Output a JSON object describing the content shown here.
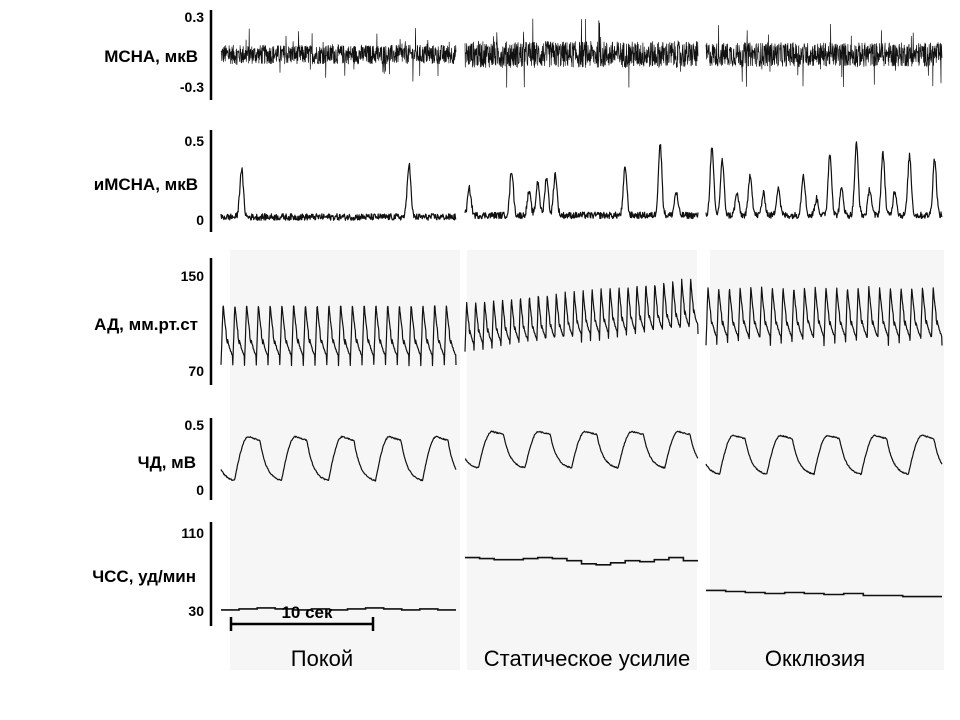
{
  "conditions": [
    "Покой",
    "Статическое усилие",
    "Окклюзия"
  ],
  "scale_bar": {
    "label": "10 сек",
    "value_s": 10
  },
  "rows": [
    {
      "label": "МСНА, мкВ",
      "ymax": "0.3",
      "ymin": "-0.3"
    },
    {
      "label": "иМСНА, мкВ",
      "ymax": "0.5",
      "ymin": "0"
    },
    {
      "label": "АД, мм.рт.ст",
      "ymax": "150",
      "ymin": "70"
    },
    {
      "label": "ЧД, мВ",
      "ymax": "0.5",
      "ymin": "0"
    },
    {
      "label": "ЧСС, уд/мин",
      "ymax": "110",
      "ymin": "30"
    }
  ],
  "chart_data": {
    "type": "line",
    "x_unit": "s",
    "segment_duration_s": 16,
    "panels": [
      {
        "name": "МСНА",
        "unit": "мкВ",
        "ylim": [
          -0.3,
          0.3
        ],
        "segments": [
          {
            "condition": "Покой",
            "amplitude": 0.08
          },
          {
            "condition": "Статическое усилие",
            "amplitude": 0.11
          },
          {
            "condition": "Окклюзия",
            "amplitude": 0.1
          }
        ]
      },
      {
        "name": "иМСНА",
        "unit": "мкВ",
        "ylim": [
          0,
          0.5
        ],
        "segments": [
          {
            "condition": "Покой",
            "baseline": 0.03,
            "bursts": [
              {
                "t": 1.4,
                "v": 0.32
              },
              {
                "t": 12.8,
                "v": 0.35
              }
            ]
          },
          {
            "condition": "Статическое усилие",
            "baseline": 0.04,
            "bursts": [
              {
                "t": 0.3,
                "v": 0.2
              },
              {
                "t": 3.2,
                "v": 0.31
              },
              {
                "t": 4.4,
                "v": 0.18
              },
              {
                "t": 5.0,
                "v": 0.24
              },
              {
                "t": 5.6,
                "v": 0.27
              },
              {
                "t": 6.2,
                "v": 0.29
              },
              {
                "t": 11.0,
                "v": 0.33
              },
              {
                "t": 13.4,
                "v": 0.47
              },
              {
                "t": 14.5,
                "v": 0.18
              }
            ]
          },
          {
            "condition": "Окклюзия",
            "baseline": 0.04,
            "bursts": [
              {
                "t": 0.4,
                "v": 0.44
              },
              {
                "t": 1.1,
                "v": 0.37
              },
              {
                "t": 2.1,
                "v": 0.17
              },
              {
                "t": 3.0,
                "v": 0.29
              },
              {
                "t": 3.9,
                "v": 0.17
              },
              {
                "t": 4.9,
                "v": 0.21
              },
              {
                "t": 6.6,
                "v": 0.29
              },
              {
                "t": 7.5,
                "v": 0.14
              },
              {
                "t": 8.4,
                "v": 0.41
              },
              {
                "t": 9.2,
                "v": 0.2
              },
              {
                "t": 10.2,
                "v": 0.47
              },
              {
                "t": 11.1,
                "v": 0.2
              },
              {
                "t": 12.0,
                "v": 0.41
              },
              {
                "t": 12.8,
                "v": 0.19
              },
              {
                "t": 13.8,
                "v": 0.4
              },
              {
                "t": 15.5,
                "v": 0.38
              }
            ]
          }
        ]
      },
      {
        "name": "АД",
        "unit": "мм.рт.ст",
        "ylim": [
          70,
          150
        ],
        "segments": [
          {
            "condition": "Покой",
            "beats": 20,
            "systolic": 127,
            "diastolic": 80
          },
          {
            "condition": "Статическое усилие",
            "beats": 26,
            "systolic_start": 128,
            "systolic_end": 147,
            "diastolic_start": 90,
            "diastolic_end": 104
          },
          {
            "condition": "Окклюзия",
            "beats": 22,
            "systolic": 140,
            "diastolic": 95
          }
        ]
      },
      {
        "name": "ЧД",
        "unit": "мВ",
        "ylim": [
          0,
          0.5
        ],
        "segments": [
          {
            "condition": "Покой",
            "breaths": 5,
            "peak": 0.41,
            "trough": 0.06
          },
          {
            "condition": "Статическое усилие",
            "breaths": 5,
            "peak": 0.45,
            "trough": 0.16
          },
          {
            "condition": "Окклюзия",
            "breaths": 5,
            "peak": 0.42,
            "trough": 0.11
          }
        ]
      },
      {
        "name": "ЧСС",
        "unit": "уд/мин",
        "ylim": [
          30,
          110
        ],
        "segments": [
          {
            "condition": "Покой",
            "values": [
              34,
              35,
              36,
              35,
              34,
              35,
              34,
              35,
              36,
              35,
              34,
              35,
              34
            ]
          },
          {
            "condition": "Статическое усилие",
            "values": [
              85,
              84,
              83,
              83,
              84,
              85,
              84,
              82,
              79,
              78,
              80,
              82,
              81,
              83,
              85,
              82
            ]
          },
          {
            "condition": "Окклюзия",
            "values": [
              53,
              52,
              51,
              50,
              51,
              50,
              49,
              50,
              48,
              48,
              47,
              47
            ]
          }
        ]
      }
    ]
  }
}
